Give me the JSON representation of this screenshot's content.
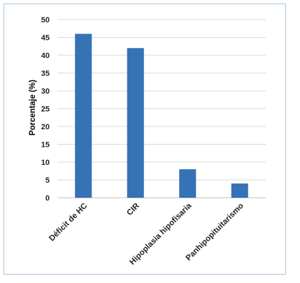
{
  "chart_data": {
    "type": "bar",
    "categories": [
      "Déficit de HC",
      "CIR",
      "Hipoplasia hipofisaria",
      "Panhipopituitarismo"
    ],
    "values": [
      46,
      42,
      8,
      4
    ],
    "title": "",
    "xlabel": "",
    "ylabel": "Porcentaje (%)",
    "ylim": [
      0,
      50
    ],
    "yticks": [
      "0",
      "5",
      "10",
      "15",
      "20",
      "25",
      "30",
      "35",
      "40",
      "45",
      "50"
    ],
    "bar_color": "#3572b6",
    "grid": true,
    "legend": "none"
  }
}
